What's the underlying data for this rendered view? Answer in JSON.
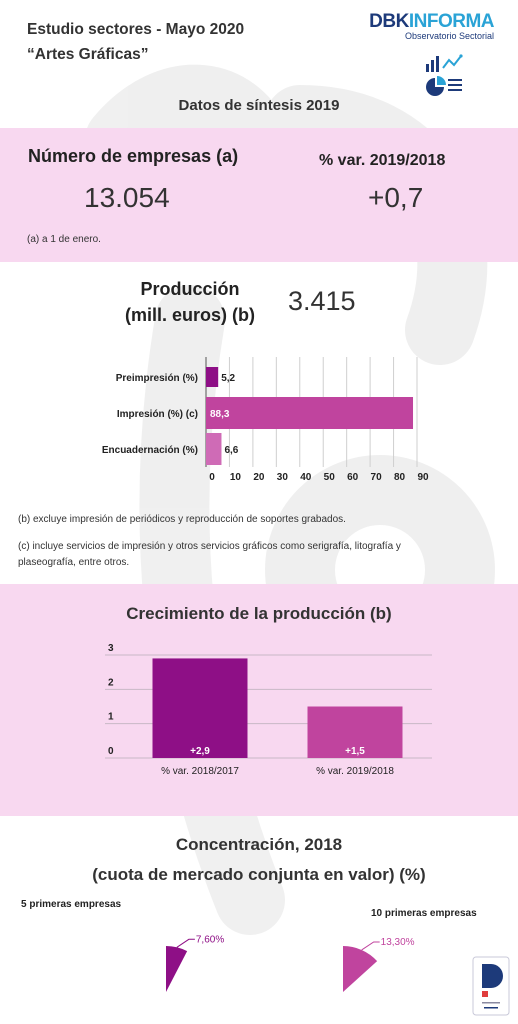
{
  "header": {
    "title_line1": "Estudio sectores - Mayo 2020",
    "title_line2": "“Artes Gráficas”",
    "logo_main_a": "DBK",
    "logo_main_b": "INFORMA",
    "logo_sub": "Observatorio Sectorial"
  },
  "synthesis_title": "Datos de síntesis 2019",
  "companies": {
    "label": "Número de empresas (a)",
    "value": "13.054",
    "var_label": "% var. 2019/2018",
    "var_value": "+0,7",
    "note": "(a) a 1 de enero."
  },
  "production": {
    "label_line1": "Producción",
    "label_line2": "(mill. euros) (b)",
    "value": "3.415"
  },
  "notes": {
    "b": "(b) excluye impresión de periódicos y reproducción de soportes grabados.",
    "c_line1": "(c) incluye servicios de impresión y otros servicios gráficos como serigrafía, litografía y",
    "c_line2": "plaseografía, entre otros."
  },
  "growth_title": "Crecimiento de la producción (b)",
  "concentration": {
    "title_line1": "Concentración, 2018",
    "title_line2": "(cuota de mercado conjunta en valor) (%)",
    "left_label": "5 primeras empresas",
    "right_label": "10 primeras empresas"
  },
  "colors": {
    "band": "#f8d8f0",
    "dark_purple": "#8e0f86",
    "medium_pink": "#c0449e",
    "light_pink": "#cf6bb6"
  },
  "chart_data": [
    {
      "type": "bar",
      "orientation": "horizontal",
      "categories": [
        "Preimpresión (%)",
        "Impresión (%) (c)",
        "Encuadernación (%)"
      ],
      "values": [
        5.2,
        88.3,
        6.6
      ],
      "value_labels": [
        "5,2",
        "88,3",
        "6,6"
      ],
      "colors": [
        "#8e0f86",
        "#c0449e",
        "#cf6bb6"
      ],
      "x_ticks": [
        "0",
        "10",
        "20",
        "30",
        "40",
        "50",
        "60",
        "70",
        "80",
        "90"
      ],
      "xlim": [
        0,
        90
      ],
      "grid": true
    },
    {
      "type": "bar",
      "categories": [
        "% var. 2018/2017",
        "% var. 2019/2018"
      ],
      "values": [
        2.9,
        1.5
      ],
      "value_labels": [
        "+2,9",
        "+1,5"
      ],
      "colors": [
        "#8e0f86",
        "#c0449e"
      ],
      "y_ticks": [
        "0",
        "1",
        "2",
        "3"
      ],
      "ylim": [
        0,
        3
      ],
      "grid": true
    },
    {
      "type": "pie",
      "name": "5 primeras empresas",
      "values": [
        7.6
      ],
      "value_label": "7,60%",
      "color": "#8e0f86"
    },
    {
      "type": "pie",
      "name": "10 primeras empresas",
      "values": [
        13.3
      ],
      "value_label": "13,30%",
      "color": "#c0449e"
    }
  ]
}
